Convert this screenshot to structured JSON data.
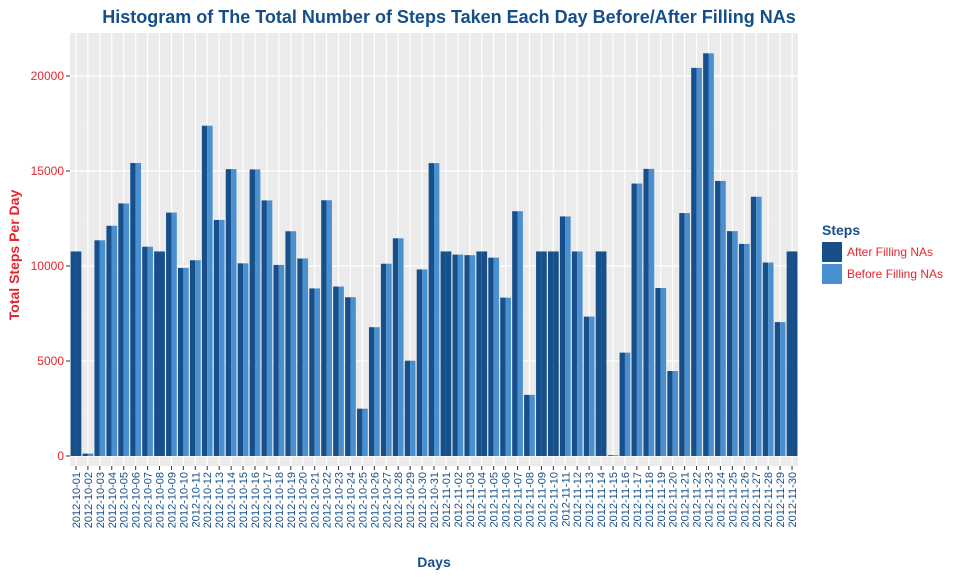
{
  "chart_data": {
    "type": "bar",
    "title": "Histogram of The Total Number of Steps Taken Each Day Before/After Filling NAs",
    "xlabel": "Days",
    "ylabel": "Total Steps Per Day",
    "ylim": [
      0,
      22000
    ],
    "yticks": [
      0,
      5000,
      10000,
      15000,
      20000
    ],
    "grid": true,
    "legend": {
      "title": "Steps",
      "position": "right",
      "entries": [
        {
          "name": "After Filling NAs",
          "color": "#164f8a"
        },
        {
          "name": "Before Filling NAs",
          "color": "#4a90d0"
        }
      ]
    },
    "categories": [
      "2012-10-01",
      "2012-10-02",
      "2012-10-03",
      "2012-10-04",
      "2012-10-05",
      "2012-10-06",
      "2012-10-07",
      "2012-10-08",
      "2012-10-09",
      "2012-10-10",
      "2012-10-11",
      "2012-10-12",
      "2012-10-13",
      "2012-10-14",
      "2012-10-15",
      "2012-10-16",
      "2012-10-17",
      "2012-10-18",
      "2012-10-19",
      "2012-10-20",
      "2012-10-21",
      "2012-10-22",
      "2012-10-23",
      "2012-10-24",
      "2012-10-25",
      "2012-10-26",
      "2012-10-27",
      "2012-10-28",
      "2012-10-29",
      "2012-10-30",
      "2012-10-31",
      "2012-11-01",
      "2012-11-02",
      "2012-11-03",
      "2012-11-04",
      "2012-11-05",
      "2012-11-06",
      "2012-11-07",
      "2012-11-08",
      "2012-11-09",
      "2012-11-10",
      "2012-11-11",
      "2012-11-12",
      "2012-11-13",
      "2012-11-14",
      "2012-11-15",
      "2012-11-16",
      "2012-11-17",
      "2012-11-18",
      "2012-11-19",
      "2012-11-20",
      "2012-11-21",
      "2012-11-22",
      "2012-11-23",
      "2012-11-24",
      "2012-11-25",
      "2012-11-26",
      "2012-11-27",
      "2012-11-28",
      "2012-11-29",
      "2012-11-30"
    ],
    "series": [
      {
        "name": "After Filling NAs",
        "color": "#164f8a",
        "values": [
          10766,
          126,
          11352,
          12116,
          13294,
          15420,
          11015,
          10766,
          12811,
          9900,
          10304,
          17382,
          12426,
          15098,
          10139,
          15084,
          13452,
          10056,
          11829,
          10395,
          8821,
          13460,
          8918,
          8355,
          2492,
          6778,
          10119,
          11458,
          5018,
          9819,
          15414,
          10766,
          10600,
          10571,
          10766,
          10439,
          8334,
          12883,
          3219,
          10766,
          10766,
          12608,
          10765,
          7336,
          10766,
          41,
          5441,
          14339,
          15110,
          8841,
          4472,
          12787,
          20427,
          21194,
          14478,
          11834,
          11162,
          13646,
          10183,
          7047,
          10766
        ]
      },
      {
        "name": "Before Filling NAs",
        "color": "#4a90d0",
        "values": [
          null,
          126,
          11352,
          12116,
          13294,
          15420,
          11015,
          null,
          12811,
          9900,
          10304,
          17382,
          12426,
          15098,
          10139,
          15084,
          13452,
          10056,
          11829,
          10395,
          8821,
          13460,
          8918,
          8355,
          2492,
          6778,
          10119,
          11458,
          5018,
          9819,
          15414,
          null,
          10600,
          10571,
          null,
          10439,
          8334,
          12883,
          3219,
          null,
          null,
          12608,
          10765,
          7336,
          null,
          41,
          5441,
          14339,
          15110,
          8841,
          4472,
          12787,
          20427,
          21194,
          14478,
          11834,
          11162,
          13646,
          10183,
          7047,
          null
        ]
      }
    ]
  }
}
